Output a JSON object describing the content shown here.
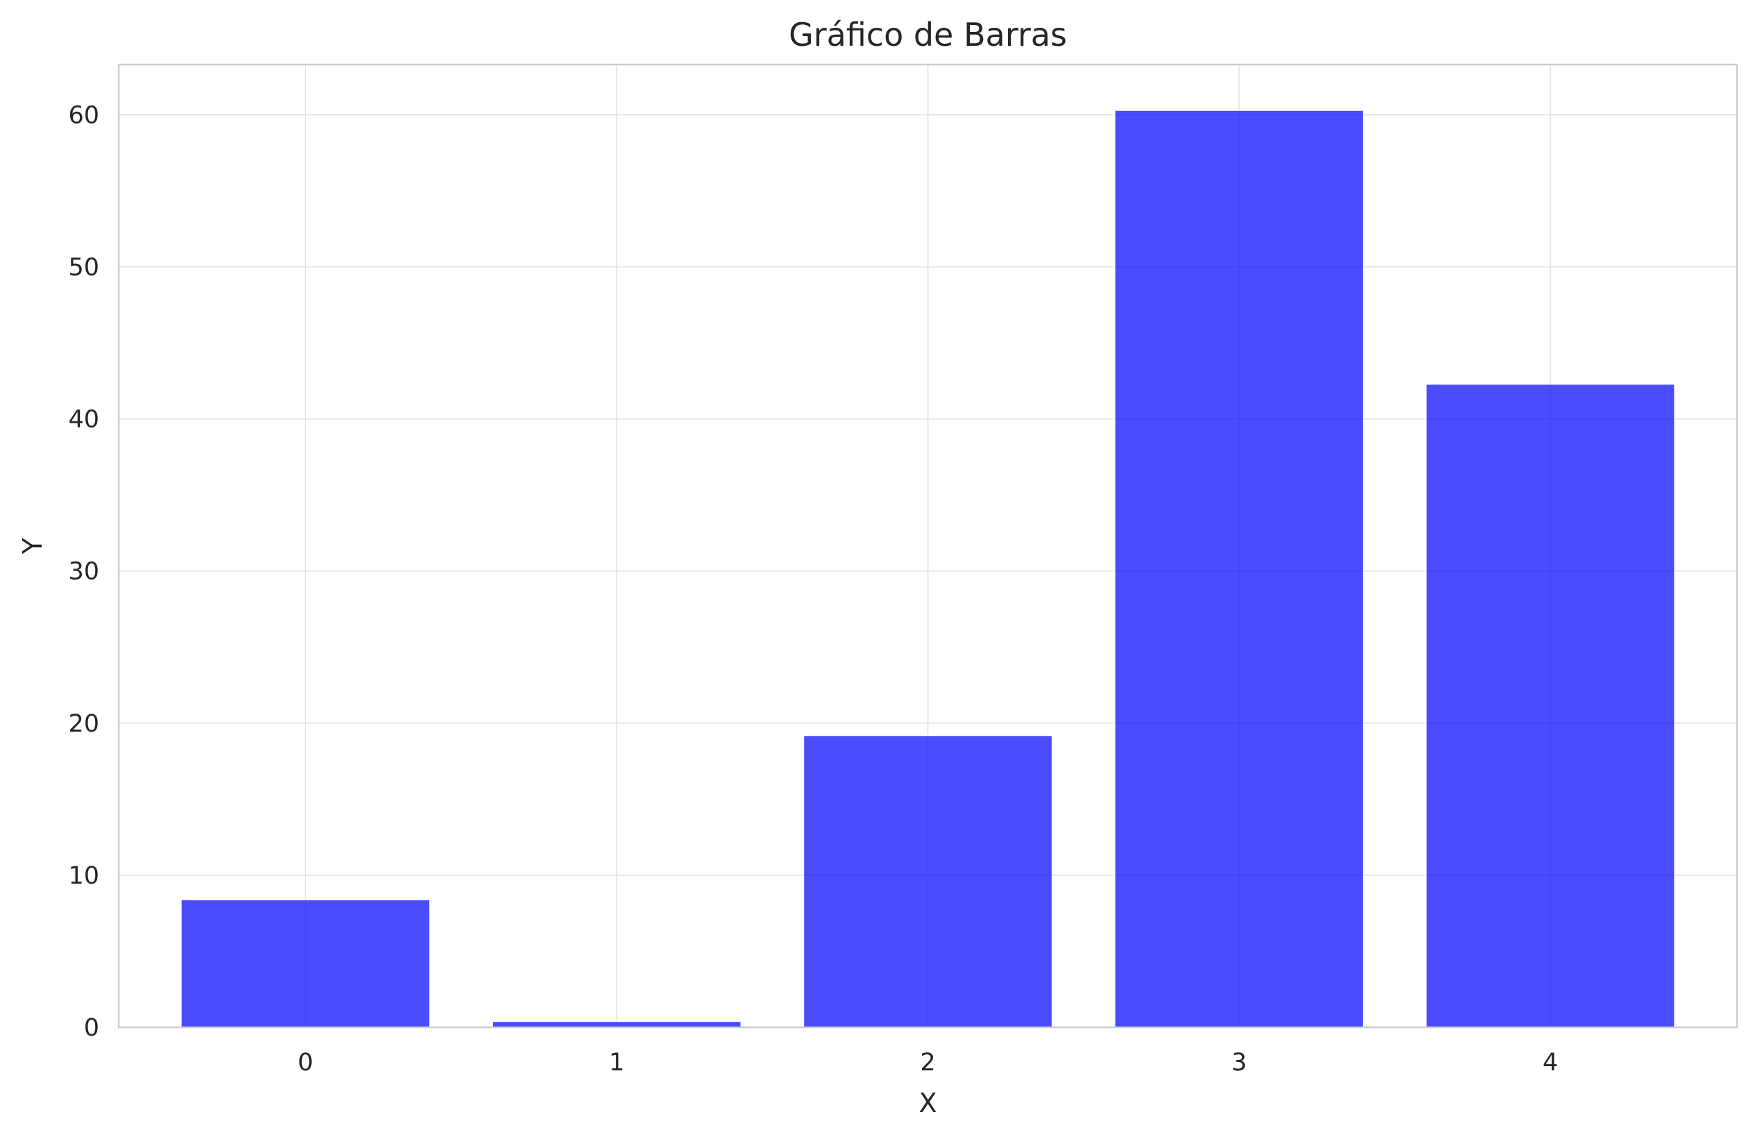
{
  "chart_data": {
    "type": "bar",
    "title": "Gráfico de Barras",
    "xlabel": "X",
    "ylabel": "Y",
    "categories": [
      "0",
      "1",
      "2",
      "3",
      "4"
    ],
    "values": [
      8.4,
      0.4,
      19.2,
      60.3,
      42.3
    ],
    "ylim": [
      0,
      63.3
    ],
    "yticks": [
      0,
      10,
      20,
      30,
      40,
      50,
      60
    ],
    "ytick_labels": [
      "0",
      "10",
      "20",
      "30",
      "40",
      "50",
      "60"
    ],
    "bar_color": "#0000ff",
    "grid": true,
    "legend": "none"
  }
}
